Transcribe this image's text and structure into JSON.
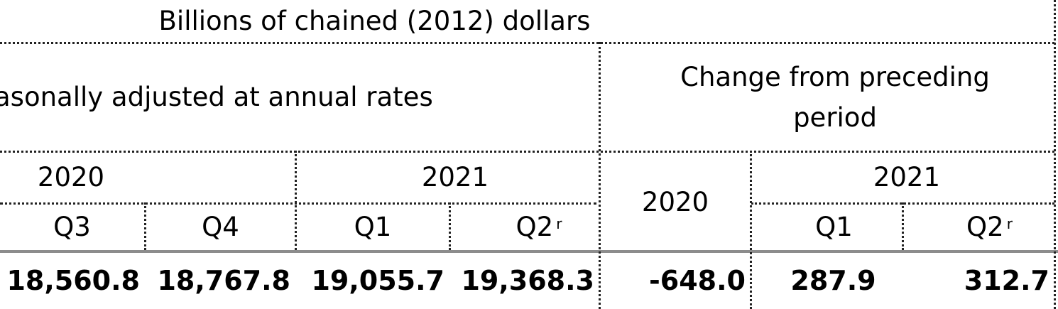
{
  "table": {
    "unit_header": "Billions of chained (2012) dollars",
    "level_header": "asonally adjusted at annual rates",
    "change_header": "Change from preceding period",
    "level_years": [
      "2020",
      "2021"
    ],
    "change_year_2020": "2020",
    "change_year_2021": "2021",
    "level_quarters": [
      "Q3",
      "Q4",
      "Q1",
      "Q2"
    ],
    "change_quarters": [
      "Q1",
      "Q2"
    ],
    "revised_marker": "r",
    "levels": [
      "18,560.8",
      "18,767.8",
      "19,055.7",
      "19,368.3"
    ],
    "changes": [
      "-648.0",
      "287.9",
      "312.7"
    ]
  }
}
